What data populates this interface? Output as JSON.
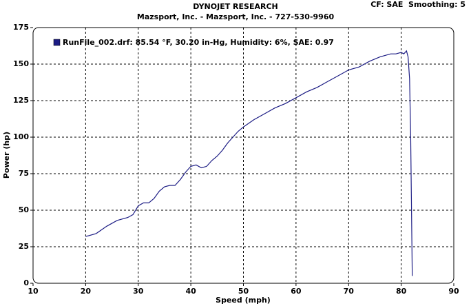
{
  "chart_data": {
    "type": "line",
    "title": "DYNOJET RESEARCH",
    "subtitle": "Mazsport, Inc. - Mazsport, Inc. - 727-530-9960",
    "annotation": "CF: SAE  Smoothing: 5",
    "x_label": "Speed (mph)",
    "y_label": "Power (hp)",
    "xlim": [
      10,
      90
    ],
    "xticks": [
      10,
      20,
      30,
      40,
      50,
      60,
      70,
      80,
      90
    ],
    "ylim": [
      0,
      175
    ],
    "yticks": [
      0,
      25,
      50,
      75,
      100,
      125,
      150,
      175
    ],
    "grid": true,
    "x": [
      20,
      22,
      24,
      26,
      28,
      29,
      30,
      31,
      32,
      33,
      34,
      35,
      36,
      37,
      38,
      39,
      40,
      41,
      42,
      43,
      44,
      45,
      46,
      47,
      48,
      49,
      50,
      52,
      54,
      56,
      58,
      60,
      62,
      64,
      66,
      68,
      70,
      72,
      74,
      76,
      78,
      79,
      80,
      80.5,
      81,
      81.3,
      81.6,
      81.8,
      82.1
    ],
    "series": [
      {
        "name": "RunFile_002.drf: 85.54 °F, 30.20 in-Hg, Humidity: 6%, SAE: 0.97",
        "color": "#1c1c84",
        "values": [
          32,
          34,
          39,
          43,
          45,
          47,
          53,
          55,
          55,
          58,
          63,
          66,
          67,
          67,
          71,
          76,
          80,
          81,
          79,
          80,
          84,
          87,
          91,
          96,
          100,
          104,
          107,
          112,
          116,
          120,
          123,
          127,
          131,
          134,
          138,
          142,
          146,
          148,
          152,
          155,
          157,
          157,
          158,
          157,
          159,
          155,
          140,
          100,
          5
        ]
      }
    ]
  }
}
